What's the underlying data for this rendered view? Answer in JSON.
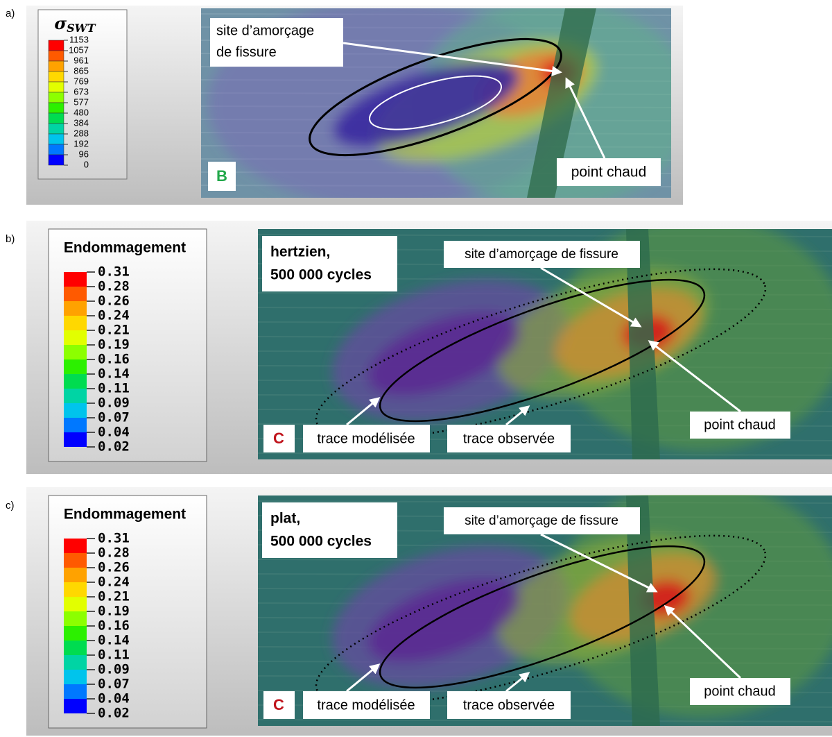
{
  "panels": [
    {
      "label": "a)",
      "legend": {
        "title": {
          "symbol": "σ",
          "subscript": "SWT"
        },
        "values": [
          1153,
          1057,
          961,
          865,
          769,
          673,
          577,
          480,
          384,
          288,
          192,
          96,
          0
        ]
      },
      "annotations": {
        "crack_site": [
          "site d’amorçage",
          "de fissure"
        ],
        "hot_spot": "point chaud",
        "zone": "B"
      }
    },
    {
      "label": "b)",
      "legend": {
        "title": "Endommagement",
        "values": [
          0.31,
          0.28,
          0.26,
          0.24,
          0.21,
          0.19,
          0.16,
          0.14,
          0.11,
          0.09,
          0.07,
          0.04,
          0.02
        ]
      },
      "annotations": {
        "condition": [
          "hertzien,",
          "500 000 cycles"
        ],
        "crack_site": "site d’amorçage de fissure",
        "hot_spot": "point chaud",
        "zone": "C",
        "modeled_trace": "trace modélisée",
        "observed_trace": "trace observée"
      }
    },
    {
      "label": "c)",
      "legend": {
        "title": "Endommagement",
        "values": [
          0.31,
          0.28,
          0.26,
          0.24,
          0.21,
          0.19,
          0.16,
          0.14,
          0.11,
          0.09,
          0.07,
          0.04,
          0.02
        ]
      },
      "annotations": {
        "condition": [
          "plat,",
          "500 000 cycles"
        ],
        "crack_site": "site d’amorçage de fissure",
        "hot_spot": "point chaud",
        "zone": "C",
        "modeled_trace": "trace modélisée",
        "observed_trace": "trace observée"
      }
    }
  ]
}
